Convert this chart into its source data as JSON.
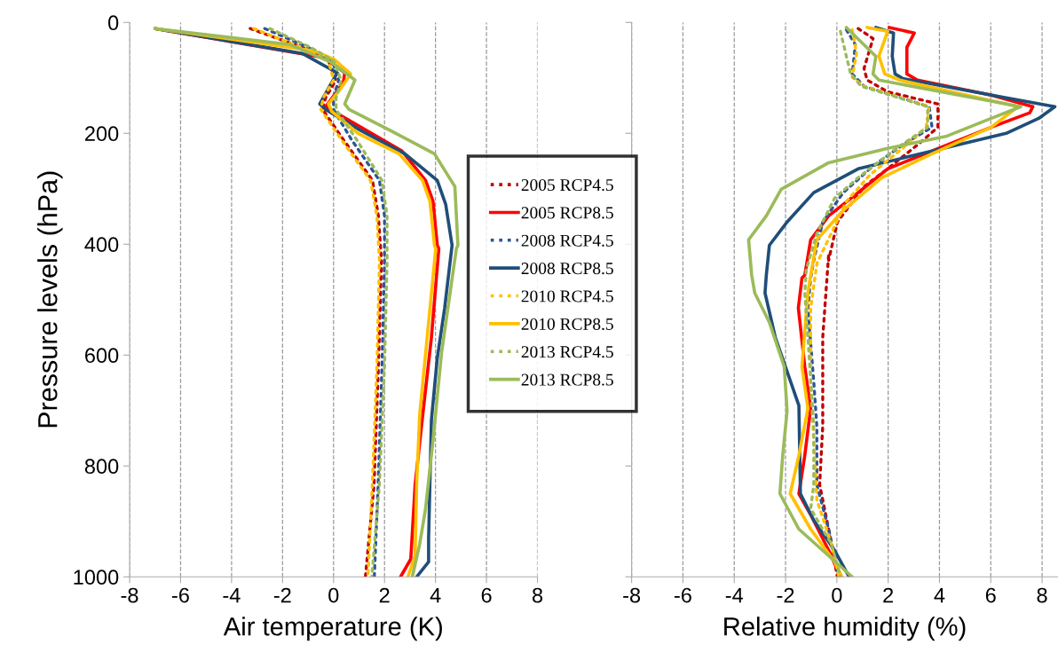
{
  "chart_data": [
    {
      "type": "line",
      "xlabel": "Air temperature (K)",
      "ylabel": "Pressure levels (hPa)",
      "xlim": [
        -8,
        8
      ],
      "xticks": [
        -8,
        -6,
        -4,
        -2,
        0,
        2,
        4,
        6,
        8
      ],
      "ylim": [
        1000,
        0
      ],
      "yticks": [
        0,
        200,
        400,
        600,
        800,
        1000
      ],
      "grid": "x",
      "legend": "right",
      "series": [
        {
          "name": "2005 RCP4.5",
          "color": "#c00000",
          "line_style": "dotted",
          "x": [
            -3.27,
            -1.23,
            -0.2,
            0.09,
            -0.31,
            -0.43,
            0.38,
            1.53,
            1.76,
            1.88,
            1.76,
            1.59,
            1.25
          ],
          "values": [
            11,
            45,
            69,
            104,
            136,
            157,
            211,
            285,
            349,
            429,
            621,
            834,
            1000
          ]
        },
        {
          "name": "2005 RCP8.5",
          "color": "#ff0000",
          "line_style": "solid",
          "x": [
            -7.0,
            -0.31,
            0.44,
            0.38,
            -0.31,
            1.07,
            2.69,
            3.61,
            3.9,
            4.07,
            4.13,
            3.84,
            3.49,
            3.2,
            3.03,
            2.63
          ],
          "values": [
            11,
            64,
            91,
            109,
            152,
            189,
            232,
            285,
            322,
            402,
            408,
            568,
            712,
            834,
            968,
            1000
          ]
        },
        {
          "name": "2008 RCP4.5",
          "color": "#2e5597",
          "line_style": "dotted",
          "x": [
            -2.7,
            -1.0,
            -0.05,
            0.2,
            0.0,
            0.0,
            0.7,
            1.8,
            2.0,
            2.0,
            1.9,
            1.75,
            1.6
          ],
          "values": [
            11,
            45,
            69,
            104,
            136,
            157,
            211,
            285,
            349,
            429,
            621,
            834,
            1000
          ]
        },
        {
          "name": "2008 RCP8.5",
          "color": "#1f4e79",
          "line_style": "solid",
          "x": [
            -7.0,
            -1.23,
            0.15,
            -0.08,
            -0.54,
            -0.31,
            1.07,
            2.8,
            4.07,
            4.4,
            4.65,
            4.36,
            4.07,
            3.84,
            3.73,
            3.73,
            3.26
          ],
          "values": [
            11,
            56,
            91,
            109,
            147,
            157,
            195,
            237,
            285,
            328,
            402,
            515,
            605,
            717,
            930,
            973,
            1000
          ]
        },
        {
          "name": "2010 RCP4.5",
          "color": "#ffc000",
          "line_style": "dotted",
          "x": [
            -3.13,
            -1.3,
            -0.2,
            0.0,
            -0.4,
            -0.5,
            0.3,
            1.45,
            1.7,
            1.8,
            1.7,
            1.52,
            1.35
          ],
          "values": [
            11,
            45,
            69,
            104,
            136,
            157,
            211,
            285,
            349,
            429,
            621,
            834,
            1000
          ]
        },
        {
          "name": "2010 RCP8.5",
          "color": "#ffc000",
          "line_style": "solid",
          "x": [
            -7.0,
            -0.77,
            0.03,
            0.67,
            0.27,
            -0.2,
            -0.08,
            0.96,
            2.57,
            3.49,
            3.78,
            3.96,
            4.01,
            3.73,
            3.38,
            3.26,
            3.2,
            2.92
          ],
          "values": [
            11,
            51,
            67,
            93,
            120,
            147,
            160,
            200,
            237,
            285,
            322,
            402,
            408,
            541,
            707,
            834,
            962,
            1000
          ]
        },
        {
          "name": "2013 RCP4.5",
          "color": "#9bbb59",
          "line_style": "dotted",
          "x": [
            -2.5,
            -0.9,
            0.0,
            0.3,
            0.1,
            0.1,
            0.9,
            1.9,
            2.1,
            2.1,
            2.0,
            1.8,
            1.5
          ],
          "values": [
            11,
            45,
            69,
            104,
            136,
            157,
            211,
            285,
            349,
            429,
            621,
            834,
            1000
          ]
        },
        {
          "name": "2013 RCP8.5",
          "color": "#9bbb59",
          "line_style": "solid",
          "x": [
            -7.0,
            -1.7,
            -0.08,
            0.84,
            0.44,
            0.61,
            2.23,
            3.96,
            4.76,
            4.88,
            4.82,
            4.24,
            3.9,
            3.61,
            3.38,
            3.09
          ],
          "values": [
            11,
            40,
            72,
            104,
            147,
            157,
            195,
            237,
            296,
            402,
            408,
            595,
            755,
            877,
            941,
            1000
          ]
        }
      ]
    },
    {
      "type": "line",
      "xlabel": "Relative humidity (%)",
      "xlim": [
        -8,
        8.6
      ],
      "xticks": [
        -8,
        -6,
        -4,
        -2,
        0,
        2,
        4,
        6,
        8
      ],
      "ylim": [
        1000,
        0
      ],
      "yticks": [
        0,
        200,
        400,
        600,
        800,
        1000
      ],
      "grid": "x",
      "tick_labels": "x",
      "series": [
        {
          "color": "#c00000",
          "line_style": "dotted",
          "x": [
            0.83,
            1.41,
            1.06,
            1.18,
            1.98,
            3.94,
            3.94,
            3.14,
            1.98,
            1.06,
            0.02,
            -0.32,
            -0.32,
            -0.55,
            -0.55,
            -0.67,
            -0.32,
            0.02
          ],
          "values": [
            11,
            29,
            83,
            104,
            125,
            147,
            189,
            221,
            264,
            296,
            360,
            429,
            419,
            568,
            728,
            834,
            914,
            1000
          ]
        },
        {
          "color": "#ff0000",
          "line_style": "solid",
          "x": [
            2.04,
            3.02,
            2.73,
            2.73,
            3.14,
            6.02,
            7.64,
            7.52,
            6.02,
            3.71,
            1.98,
            0.83,
            -0.32,
            -1.02,
            -1.25,
            -1.36,
            -1.5,
            -1.25,
            -1.02,
            -1.25,
            -1.48,
            -1.02,
            -0.32,
            0.14
          ],
          "values": [
            9,
            19,
            45,
            93,
            104,
            131,
            152,
            163,
            189,
            232,
            264,
            307,
            349,
            392,
            456,
            461,
            515,
            621,
            696,
            781,
            850,
            888,
            952,
            1000
          ]
        },
        {
          "color": "#2e5597",
          "line_style": "dotted",
          "x": [
            0.37,
            0.72,
            0.6,
            1.06,
            3.6,
            3.71,
            2.56,
            1.41,
            0.25,
            -0.55,
            -0.9,
            -1.02,
            -1.13,
            -0.9,
            -0.78,
            -0.78,
            -0.32,
            0.08
          ],
          "values": [
            13,
            40,
            93,
            115,
            152,
            189,
            221,
            259,
            307,
            360,
            429,
            461,
            515,
            648,
            728,
            834,
            914,
            1000
          ]
        },
        {
          "color": "#1f4e79",
          "line_style": "solid",
          "x": [
            1.52,
            2.21,
            2.16,
            2.27,
            2.56,
            6.6,
            8.5,
            7.87,
            6.6,
            3.71,
            0.83,
            -0.9,
            -1.94,
            -2.63,
            -2.75,
            -2.8,
            -2.4,
            -1.48,
            -1.42,
            -0.9,
            -0.09,
            0.48
          ],
          "values": [
            9,
            19,
            61,
            93,
            101,
            136,
            152,
            173,
            200,
            232,
            264,
            307,
            360,
            402,
            456,
            488,
            568,
            691,
            850,
            898,
            952,
            1000
          ]
        },
        {
          "color": "#ffc000",
          "line_style": "dotted",
          "x": [
            0.6,
            0.77,
            0.6,
            1.06,
            3.6,
            3.48,
            2.56,
            1.29,
            0.37,
            -0.44,
            -0.78,
            -1.02,
            -1.02,
            -0.9,
            -0.78,
            -0.21,
            0.08
          ],
          "values": [
            13,
            56,
            99,
            115,
            152,
            189,
            227,
            275,
            323,
            402,
            435,
            515,
            648,
            755,
            861,
            941,
            1000
          ]
        },
        {
          "color": "#ffc000",
          "line_style": "solid",
          "x": [
            1.18,
            1.98,
            1.64,
            1.87,
            2.45,
            7.06,
            6.02,
            3.71,
            1.75,
            0.25,
            -0.78,
            -1.02,
            -1.13,
            -1.36,
            -1.13,
            -1.48,
            -1.82,
            -1.02,
            -0.09,
            0.2
          ],
          "values": [
            9,
            16,
            61,
            93,
            104,
            152,
            189,
            237,
            280,
            339,
            392,
            456,
            488,
            621,
            696,
            781,
            850,
            914,
            973,
            1000
          ]
        },
        {
          "color": "#9bbb59",
          "line_style": "dotted",
          "x": [
            0.14,
            0.37,
            0.54,
            0.95,
            3.54,
            3.54,
            2.33,
            0.83,
            -0.09,
            -0.78,
            -1.19,
            -1.25,
            -1.13,
            -0.9,
            -0.9,
            -1.02,
            -0.21,
            0.14
          ],
          "values": [
            16,
            61,
            93,
            115,
            152,
            189,
            227,
            280,
            317,
            381,
            445,
            488,
            568,
            728,
            834,
            877,
            941,
            1000
          ]
        },
        {
          "color": "#9bbb59",
          "line_style": "solid",
          "x": [
            0.37,
            1.52,
            1.41,
            1.64,
            7.17,
            6.02,
            4.29,
            1.98,
            -0.32,
            -2.17,
            -2.75,
            -3.44,
            -3.32,
            -3.2,
            -2.63,
            -2.05,
            -1.94,
            -2.11,
            -2.22,
            -1.48,
            -0.32,
            0.6
          ],
          "values": [
            9,
            61,
            93,
            104,
            152,
            173,
            205,
            227,
            253,
            301,
            349,
            392,
            456,
            488,
            541,
            621,
            701,
            781,
            850,
            914,
            962,
            1000
          ]
        }
      ]
    }
  ]
}
